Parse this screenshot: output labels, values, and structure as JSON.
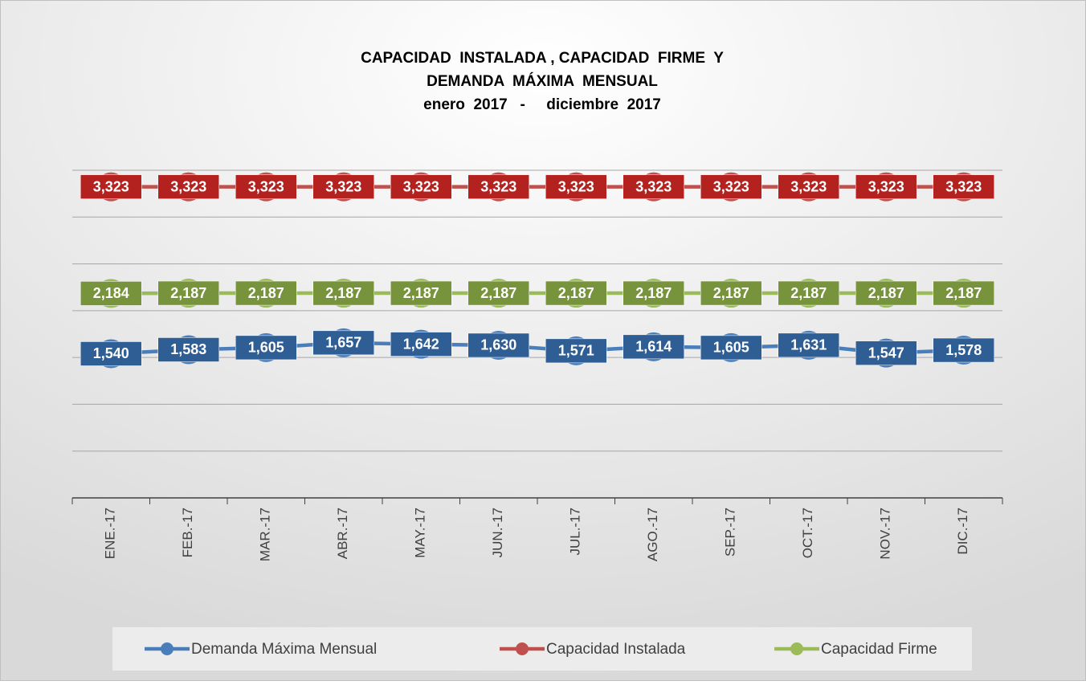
{
  "chart_data": {
    "type": "line",
    "title": [
      "CAPACIDAD  INSTALADA , CAPACIDAD  FIRME  Y",
      "DEMANDA  MÁXIMA  MENSUAL",
      "enero  2017   -     diciembre  2017"
    ],
    "categories": [
      "ENE.-17",
      "FEB.-17",
      "MAR.-17",
      "ABR.-17",
      "MAY.-17",
      "JUN.-17",
      "JUL.-17",
      "AGO.-17",
      "SEP.-17",
      "OCT.-17",
      "NOV.-17",
      "DIC.-17"
    ],
    "series": [
      {
        "name": "Demanda Máxima Mensual",
        "color": "#4a7ebb",
        "label_color": "#2f5e94",
        "values": [
          1540,
          1583,
          1605,
          1657,
          1642,
          1630,
          1571,
          1614,
          1605,
          1631,
          1547,
          1578
        ],
        "value_labels": [
          "1,540",
          "1,583",
          "1,605",
          "1,657",
          "1,642",
          "1,630",
          "1,571",
          "1,614",
          "1,605",
          "1,631",
          "1,547",
          "1,578"
        ]
      },
      {
        "name": "Capacidad Instalada",
        "color": "#c0504d",
        "label_color": "#b4221f",
        "values": [
          3323,
          3323,
          3323,
          3323,
          3323,
          3323,
          3323,
          3323,
          3323,
          3323,
          3323,
          3323
        ],
        "value_labels": [
          "3,323",
          "3,323",
          "3,323",
          "3,323",
          "3,323",
          "3,323",
          "3,323",
          "3,323",
          "3,323",
          "3,323",
          "3,323",
          "3,323"
        ]
      },
      {
        "name": "Capacidad Firme",
        "color": "#9bbb59",
        "label_color": "#77933c",
        "values": [
          2184,
          2187,
          2187,
          2187,
          2187,
          2187,
          2187,
          2187,
          2187,
          2187,
          2187,
          2187
        ],
        "value_labels": [
          "2,184",
          "2,187",
          "2,187",
          "2,187",
          "2,187",
          "2,187",
          "2,187",
          "2,187",
          "2,187",
          "2,187",
          "2,187",
          "2,187"
        ]
      }
    ],
    "ylim": [
      0,
      3500
    ],
    "yticks": [
      500,
      1000,
      1500,
      2000,
      2500,
      3000,
      3500
    ],
    "grid": true,
    "show_ytick_labels": false,
    "legend": "bottom"
  }
}
